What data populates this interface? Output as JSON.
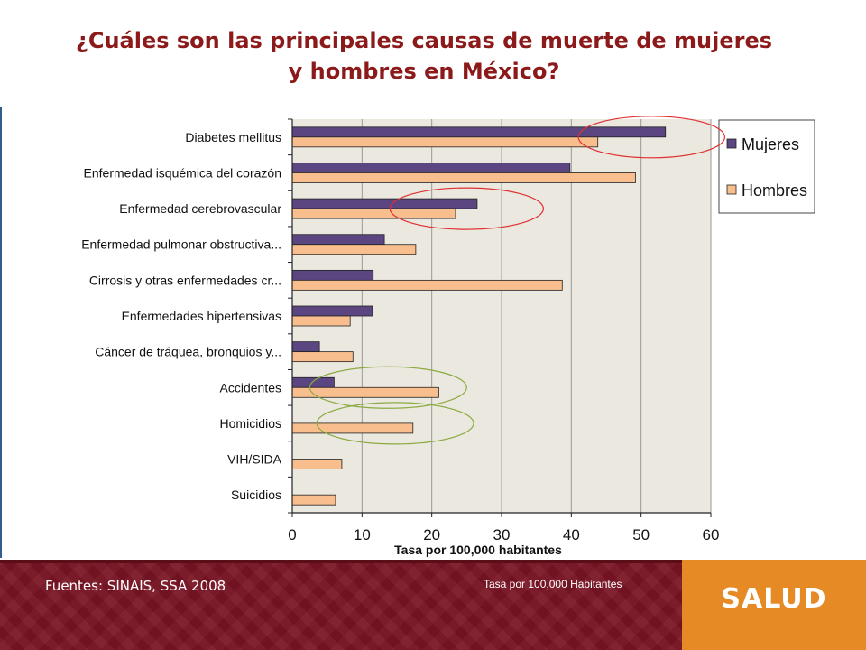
{
  "slide": {
    "title_line1": "¿Cuáles son las  principales causas de muerte de mujeres",
    "title_line2": "y hombres en México?"
  },
  "footer": {
    "sources": "Fuentes: SINAIS, SSA 2008",
    "rate_note": "Tasa por 100,000 Habitantes",
    "brand": "SALUD"
  },
  "colors": {
    "title": "#8c1a1a",
    "mujeres": "#5b4682",
    "hombres": "#f9be8e",
    "plot_bg": "#ebe8e0",
    "footer": "#7a1424",
    "brand": "#e58a25",
    "circle_red": "#e03030",
    "circle_green": "#8aaa40"
  },
  "chart_data": {
    "type": "bar",
    "orientation": "horizontal",
    "categories": [
      "Diabetes mellitus",
      "Enfermedad isquémica del corazón",
      "Enfermedad cerebrovascular",
      "Enfermedad pulmonar obstructiva...",
      "Cirrosis y otras enfermedades cr...",
      "Enfermedades hipertensivas",
      "Cáncer de tráquea, bronquios y...",
      "Accidentes",
      "Homicidios",
      "VIH/SIDA",
      "Suicidios"
    ],
    "series": [
      {
        "name": "Mujeres",
        "values": [
          53.5,
          39.8,
          26.5,
          13.2,
          11.6,
          11.5,
          3.9,
          6.0,
          0,
          0,
          0
        ]
      },
      {
        "name": "Hombres",
        "values": [
          43.8,
          49.2,
          23.4,
          17.7,
          38.7,
          8.3,
          8.7,
          21.0,
          17.3,
          7.1,
          6.2
        ]
      }
    ],
    "xlabel": "Tasa por 100,000  habitantes",
    "xlim": [
      0,
      60
    ],
    "xticks": [
      0,
      10,
      20,
      30,
      40,
      50,
      60
    ],
    "grid": "vertical",
    "legend_position": "top-right",
    "annotations": [
      {
        "shape": "ellipse",
        "color": "red",
        "category": "Diabetes mellitus",
        "x_range": [
          41,
          62
        ]
      },
      {
        "shape": "ellipse",
        "color": "red",
        "category": "Enfermedad cerebrovascular",
        "x_range": [
          14,
          36
        ]
      },
      {
        "shape": "ellipse",
        "color": "green",
        "category": "Accidentes",
        "x_range": [
          2.5,
          25
        ]
      },
      {
        "shape": "ellipse",
        "color": "green",
        "category": "Homicidios",
        "x_range": [
          3.5,
          26
        ]
      }
    ]
  }
}
